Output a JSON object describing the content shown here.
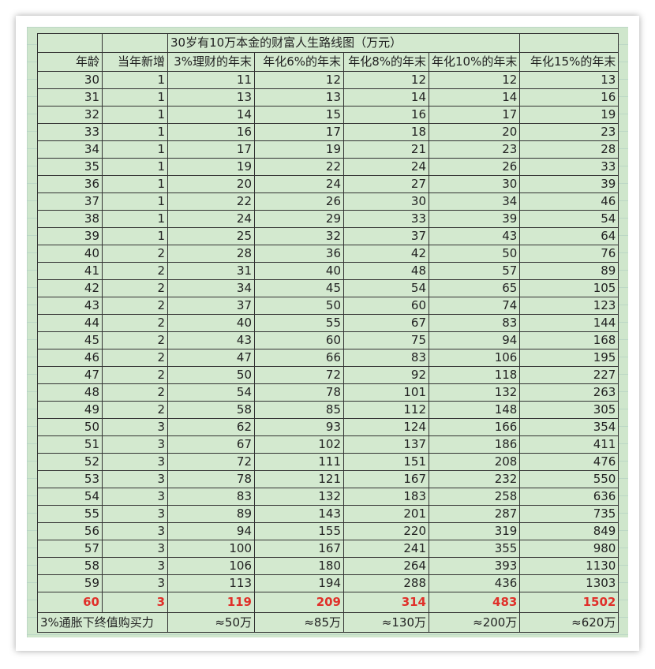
{
  "title": "30岁有10万本金的财富人生路线图（万元）",
  "headers": [
    "年龄",
    "当年新增",
    "3%理财的年末",
    "年化6%的年末",
    "年化8%的年末",
    "年化10%的年末",
    "年化15%的年末"
  ],
  "rows": [
    [
      "30",
      "1",
      "11",
      "12",
      "12",
      "12",
      "13"
    ],
    [
      "31",
      "1",
      "13",
      "13",
      "14",
      "14",
      "16"
    ],
    [
      "32",
      "1",
      "14",
      "15",
      "16",
      "17",
      "19"
    ],
    [
      "33",
      "1",
      "16",
      "17",
      "18",
      "20",
      "23"
    ],
    [
      "34",
      "1",
      "17",
      "19",
      "21",
      "23",
      "28"
    ],
    [
      "35",
      "1",
      "19",
      "22",
      "24",
      "26",
      "33"
    ],
    [
      "36",
      "1",
      "20",
      "24",
      "27",
      "30",
      "39"
    ],
    [
      "37",
      "1",
      "22",
      "26",
      "30",
      "34",
      "46"
    ],
    [
      "38",
      "1",
      "24",
      "29",
      "33",
      "39",
      "54"
    ],
    [
      "39",
      "1",
      "25",
      "32",
      "37",
      "43",
      "64"
    ],
    [
      "40",
      "2",
      "28",
      "36",
      "42",
      "50",
      "76"
    ],
    [
      "41",
      "2",
      "31",
      "40",
      "48",
      "57",
      "89"
    ],
    [
      "42",
      "2",
      "34",
      "45",
      "54",
      "65",
      "105"
    ],
    [
      "43",
      "2",
      "37",
      "50",
      "60",
      "74",
      "123"
    ],
    [
      "44",
      "2",
      "40",
      "55",
      "67",
      "83",
      "144"
    ],
    [
      "45",
      "2",
      "43",
      "60",
      "75",
      "94",
      "168"
    ],
    [
      "46",
      "2",
      "47",
      "66",
      "83",
      "106",
      "195"
    ],
    [
      "47",
      "2",
      "50",
      "72",
      "92",
      "118",
      "227"
    ],
    [
      "48",
      "2",
      "54",
      "78",
      "101",
      "132",
      "263"
    ],
    [
      "49",
      "2",
      "58",
      "85",
      "112",
      "148",
      "305"
    ],
    [
      "50",
      "3",
      "62",
      "93",
      "124",
      "166",
      "354"
    ],
    [
      "51",
      "3",
      "67",
      "102",
      "137",
      "186",
      "411"
    ],
    [
      "52",
      "3",
      "72",
      "111",
      "151",
      "208",
      "476"
    ],
    [
      "53",
      "3",
      "78",
      "121",
      "167",
      "232",
      "550"
    ],
    [
      "54",
      "3",
      "83",
      "132",
      "183",
      "258",
      "636"
    ],
    [
      "55",
      "3",
      "89",
      "143",
      "201",
      "287",
      "735"
    ],
    [
      "56",
      "3",
      "94",
      "155",
      "220",
      "319",
      "849"
    ],
    [
      "57",
      "3",
      "100",
      "167",
      "241",
      "355",
      "980"
    ],
    [
      "58",
      "3",
      "106",
      "180",
      "264",
      "393",
      "1130"
    ],
    [
      "59",
      "3",
      "113",
      "194",
      "288",
      "436",
      "1303"
    ]
  ],
  "final_row": [
    "60",
    "3",
    "119",
    "209",
    "314",
    "483",
    "1502"
  ],
  "footer": {
    "label": "3%通胀下终值购买力",
    "values": [
      "≈50万",
      "≈85万",
      "≈130万",
      "≈200万",
      "≈620万"
    ]
  },
  "colors": {
    "highlight": "#e0302a",
    "background": "#d3e9cf"
  }
}
